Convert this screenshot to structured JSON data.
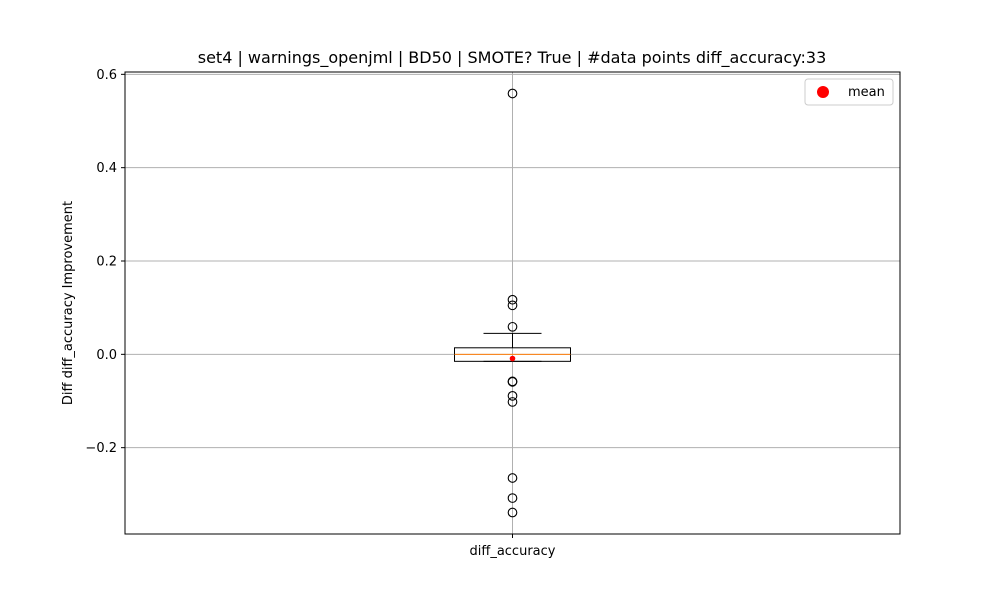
{
  "chart_data": {
    "type": "box",
    "title": "set4 | warnings_openjml | BD50 | SMOTE? True | #data points diff_accuracy:33",
    "xlabel": "",
    "ylabel": "Diff diff_accuracy Improvement",
    "categories": [
      "diff_accuracy"
    ],
    "ylim": [
      -0.385,
      0.605
    ],
    "yticks": [
      -0.2,
      0.0,
      0.2,
      0.4,
      0.6
    ],
    "ytick_labels": [
      "−0.2",
      "0.0",
      "0.2",
      "0.4",
      "0.6"
    ],
    "grid": true,
    "legend": {
      "placement": "top-right",
      "entries": [
        {
          "label": "mean",
          "color": "#ff0000"
        }
      ]
    },
    "box": {
      "q1": -0.015,
      "median": 0.0,
      "q3": 0.014,
      "whisker_low": -0.015,
      "whisker_high": 0.045,
      "mean": -0.009,
      "outliers": [
        0.559,
        0.117,
        0.105,
        0.059,
        -0.058,
        -0.059,
        -0.089,
        -0.102,
        -0.265,
        -0.308,
        -0.339
      ]
    },
    "colors": {
      "box": "#000000",
      "median": "#ff7f0e",
      "mean": "#ff0000",
      "grid": "#b0b0b0"
    }
  }
}
